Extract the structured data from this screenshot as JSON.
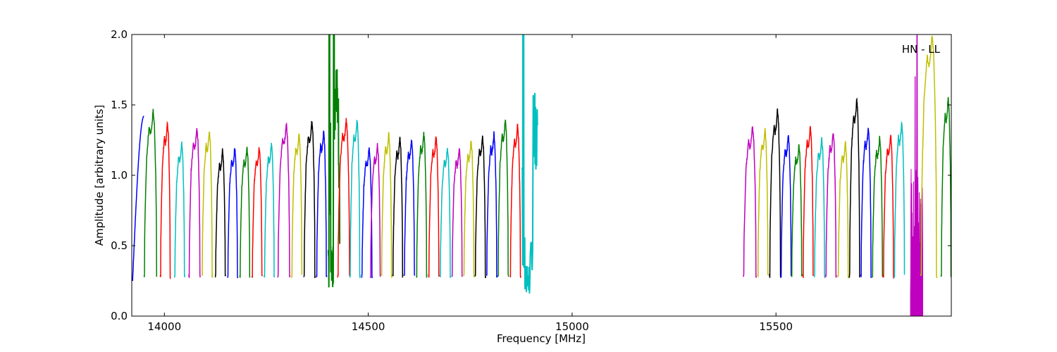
{
  "chart_data": {
    "type": "line",
    "title": "",
    "xlabel": "Frequency [MHz]",
    "ylabel": "Amplitude [arbitrary units]",
    "xlim": [
      13920,
      15930
    ],
    "ylim": [
      0.0,
      2.0
    ],
    "xticks": [
      {
        "value": 14000,
        "label": "14000"
      },
      {
        "value": 14500,
        "label": "14500"
      },
      {
        "value": 15000,
        "label": "15000"
      },
      {
        "value": 15500,
        "label": "15500"
      }
    ],
    "yticks": [
      {
        "value": 0.0,
        "label": "0.0"
      },
      {
        "value": 0.5,
        "label": "0.5"
      },
      {
        "value": 1.0,
        "label": "1.0"
      },
      {
        "value": 1.5,
        "label": "1.5"
      },
      {
        "value": 2.0,
        "label": "2.0"
      }
    ],
    "annotation": "HN - LL",
    "grid": false,
    "legend": "none",
    "colors": [
      "#0000ff",
      "#008000",
      "#ff0000",
      "#00bfbf",
      "#bf00bf",
      "#bfbf00",
      "#000000"
    ],
    "band_shape": [
      0.3,
      0.7,
      1.0,
      1.1,
      1.2,
      1.15,
      1.2,
      1.3,
      1.2,
      0.9,
      0.3
    ],
    "series": [
      {
        "x": [
          13922,
          13935,
          13950
        ],
        "y": [
          0.25,
          1.05,
          1.42
        ],
        "color": "#0000ff"
      },
      {
        "x": [
          13950,
          13966,
          13982
        ],
        "peak": 1.46,
        "color": "#008000"
      },
      {
        "x": [
          13990,
          14003,
          14015
        ],
        "peak": 1.38,
        "color": "#ff0000"
      },
      {
        "x": [
          14025,
          14038,
          14050
        ],
        "peak": 1.23,
        "color": "#00bfbf"
      },
      {
        "x": [
          14060,
          14075,
          14088
        ],
        "peak": 1.34,
        "color": "#bf00bf"
      },
      {
        "x": [
          14092,
          14105,
          14118
        ],
        "peak": 1.32,
        "color": "#bfbf00"
      },
      {
        "x": [
          14125,
          14138,
          14150
        ],
        "peak": 1.18,
        "color": "#000000"
      },
      {
        "x": [
          14155,
          14168,
          14180
        ],
        "peak": 1.2,
        "color": "#0000ff"
      },
      {
        "x": [
          14185,
          14198,
          14210
        ],
        "peak": 1.2,
        "color": "#008000"
      },
      {
        "x": [
          14215,
          14228,
          14240
        ],
        "peak": 1.2,
        "color": "#ff0000"
      },
      {
        "x": [
          14245,
          14258,
          14270
        ],
        "peak": 1.23,
        "color": "#00bfbf"
      },
      {
        "x": [
          14278,
          14293,
          14308
        ],
        "peak": 1.37,
        "color": "#bf00bf"
      },
      {
        "x": [
          14312,
          14325,
          14338
        ],
        "peak": 1.3,
        "color": "#bfbf00"
      },
      {
        "x": [
          14342,
          14356,
          14370
        ],
        "peak": 1.39,
        "color": "#000000"
      },
      {
        "x": [
          14373,
          14386,
          14398
        ],
        "peak": 1.32,
        "color": "#0000ff"
      },
      {
        "x": [
          14402,
          14415,
          14430
        ],
        "spike": true,
        "color": "#008000"
      },
      {
        "x": [
          14425,
          14440,
          14455
        ],
        "peak": 1.4,
        "color": "#ff0000"
      },
      {
        "x": [
          14455,
          14468,
          14480
        ],
        "peak": 1.4,
        "color": "#00bfbf"
      },
      {
        "x": [
          14484,
          14497,
          14510
        ],
        "peak": 1.2,
        "color": "#0000ff"
      },
      {
        "x": [
          14505,
          14518,
          14530
        ],
        "peak": 1.22,
        "color": "#bf00bf"
      },
      {
        "x": [
          14532,
          14545,
          14558
        ],
        "peak": 1.3,
        "color": "#bfbf00"
      },
      {
        "x": [
          14560,
          14573,
          14585
        ],
        "peak": 1.27,
        "color": "#000000"
      },
      {
        "x": [
          14588,
          14601,
          14614
        ],
        "peak": 1.26,
        "color": "#0000ff"
      },
      {
        "x": [
          14618,
          14631,
          14644
        ],
        "peak": 1.3,
        "color": "#008000"
      },
      {
        "x": [
          14648,
          14661,
          14674
        ],
        "peak": 1.28,
        "color": "#ff0000"
      },
      {
        "x": [
          14676,
          14689,
          14702
        ],
        "peak": 1.2,
        "color": "#00bfbf"
      },
      {
        "x": [
          14705,
          14718,
          14731
        ],
        "peak": 1.2,
        "color": "#bf00bf"
      },
      {
        "x": [
          14734,
          14747,
          14760
        ],
        "peak": 1.25,
        "color": "#bfbf00"
      },
      {
        "x": [
          14762,
          14775,
          14788
        ],
        "peak": 1.28,
        "color": "#000000"
      },
      {
        "x": [
          14790,
          14803,
          14816
        ],
        "peak": 1.3,
        "color": "#0000ff"
      },
      {
        "x": [
          14818,
          14831,
          14844
        ],
        "peak": 1.4,
        "color": "#008000"
      },
      {
        "x": [
          14848,
          14861,
          14874
        ],
        "peak": 1.36,
        "color": "#ff0000"
      },
      {
        "x": [
          14876,
          14895,
          14915
        ],
        "spike2": true,
        "color": "#00bfbf"
      },
      {
        "x": [
          15420,
          15436,
          15452
        ],
        "peak": 1.35,
        "color": "#bf00bf"
      },
      {
        "x": [
          15455,
          15468,
          15481
        ],
        "peak": 1.33,
        "color": "#bfbf00"
      },
      {
        "x": [
          15484,
          15499,
          15512
        ],
        "peak": 1.47,
        "color": "#000000"
      },
      {
        "x": [
          15512,
          15525,
          15538
        ],
        "peak": 1.29,
        "color": "#0000ff"
      },
      {
        "x": [
          15538,
          15551,
          15564
        ],
        "peak": 1.22,
        "color": "#008000"
      },
      {
        "x": [
          15566,
          15579,
          15592
        ],
        "peak": 1.35,
        "color": "#ff0000"
      },
      {
        "x": [
          15594,
          15607,
          15620
        ],
        "peak": 1.26,
        "color": "#00bfbf"
      },
      {
        "x": [
          15622,
          15635,
          15648
        ],
        "peak": 1.31,
        "color": "#bf00bf"
      },
      {
        "x": [
          15652,
          15665,
          15678
        ],
        "peak": 1.24,
        "color": "#bfbf00"
      },
      {
        "x": [
          15680,
          15693,
          15706
        ],
        "peak": 1.55,
        "color": "#000000"
      },
      {
        "x": [
          15708,
          15721,
          15734
        ],
        "peak": 1.34,
        "color": "#0000ff"
      },
      {
        "x": [
          15736,
          15749,
          15762
        ],
        "peak": 1.27,
        "color": "#008000"
      },
      {
        "x": [
          15763,
          15776,
          15789
        ],
        "peak": 1.29,
        "color": "#ff0000"
      },
      {
        "x": [
          15790,
          15803,
          15816
        ],
        "peak": 1.38,
        "color": "#00bfbf"
      },
      {
        "x": [
          15830,
          15845,
          15860
        ],
        "noisy": true,
        "color": "#bf00bf"
      },
      {
        "x": [
          15855,
          15875,
          15895
        ],
        "peak": 2.0,
        "color": "#bfbf00"
      },
      {
        "x": [
          15905,
          15918,
          15930
        ],
        "peak": 1.56,
        "color": "#008000"
      }
    ]
  }
}
